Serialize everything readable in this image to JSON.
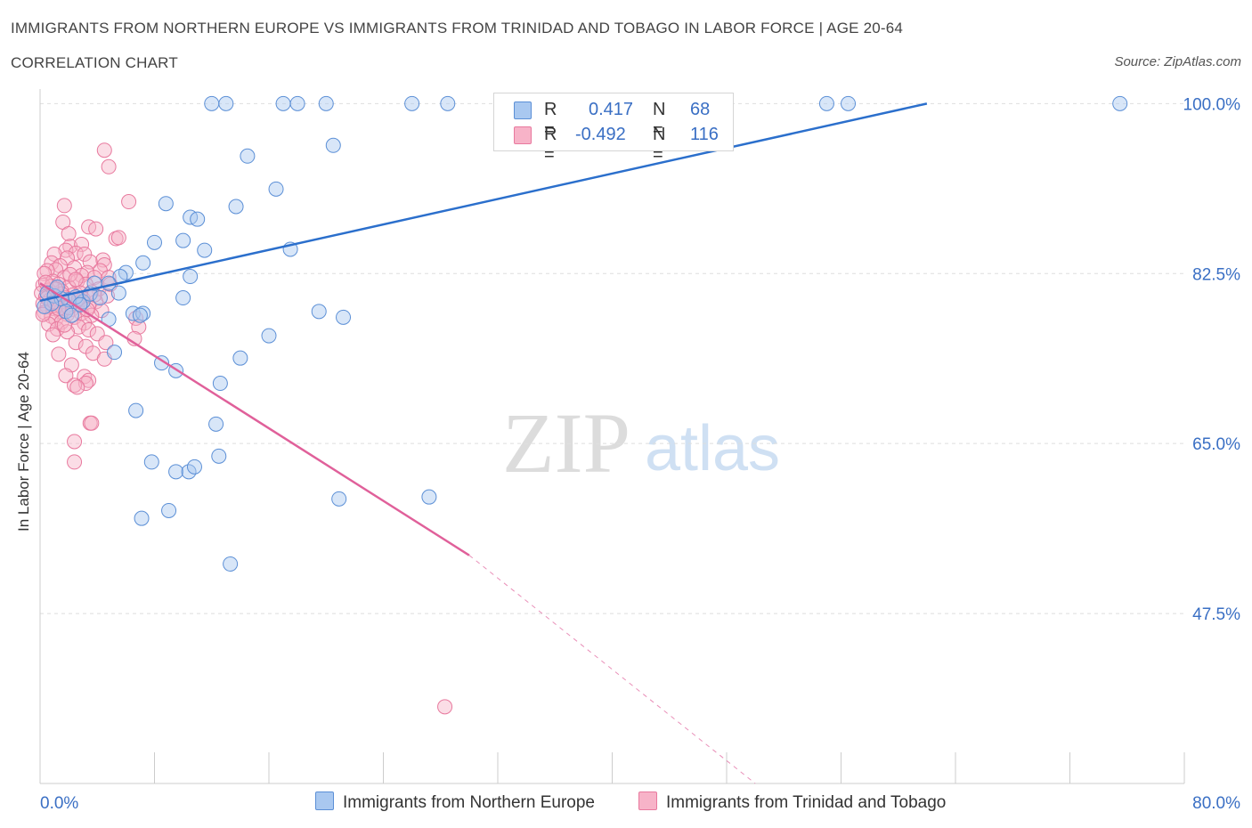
{
  "header": {
    "title": "IMMIGRANTS FROM NORTHERN EUROPE VS IMMIGRANTS FROM TRINIDAD AND TOBAGO IN LABOR FORCE | AGE 20-64",
    "subtitle": "CORRELATION CHART",
    "source": "Source: ZipAtlas.com"
  },
  "watermark": {
    "zip": "ZIP",
    "atlas": "atlas"
  },
  "legend": {
    "rows": [
      {
        "r_label": "R =",
        "r_value": "0.417",
        "n_label": "N =",
        "n_value": "68"
      },
      {
        "r_label": "R =",
        "r_value": "-0.492",
        "n_label": "N =",
        "n_value": "116"
      }
    ]
  },
  "colors": {
    "blue_fill": "#a9c8f0",
    "blue_stroke": "#5b8fd6",
    "blue_line": "#2b6fcc",
    "pink_fill": "#f7b3c8",
    "pink_stroke": "#e8799e",
    "pink_line": "#e0609a",
    "tick_label": "#3a6fc4",
    "grid": "#dedede"
  },
  "chart_data": {
    "type": "scatter",
    "title": "IMMIGRANTS FROM NORTHERN EUROPE VS IMMIGRANTS FROM TRINIDAD AND TOBAGO IN LABOR FORCE | AGE 20-64",
    "ylabel": "In Labor Force | Age 20-64",
    "xlabel": "",
    "xlim": [
      0,
      80
    ],
    "ylim": [
      30,
      101.5
    ],
    "x_tick_labels": [
      "0.0%",
      "80.0%"
    ],
    "y_ticks": [
      100,
      82.5,
      65,
      47.5
    ],
    "y_tick_labels": [
      "100.0%",
      "82.5%",
      "65.0%",
      "47.5%"
    ],
    "grid": "horizontal dashed",
    "legend_position": "top-center",
    "series": [
      {
        "name": "Immigrants from Northern Europe",
        "color": "#a9c8f0",
        "R": 0.417,
        "N": 68,
        "trend": {
          "x": [
            0,
            62
          ],
          "y": [
            79.7,
            100
          ]
        },
        "points": [
          [
            12,
            100
          ],
          [
            13,
            100
          ],
          [
            17,
            100
          ],
          [
            18,
            100
          ],
          [
            20,
            100
          ],
          [
            26,
            100
          ],
          [
            28.5,
            100
          ],
          [
            33,
            100
          ],
          [
            55,
            100
          ],
          [
            56.5,
            100
          ],
          [
            75.5,
            100
          ],
          [
            20.5,
            95.7
          ],
          [
            14.5,
            94.6
          ],
          [
            16.5,
            91.2
          ],
          [
            8.8,
            89.7
          ],
          [
            13.7,
            89.4
          ],
          [
            10.5,
            88.3
          ],
          [
            11,
            88.1
          ],
          [
            8,
            85.7
          ],
          [
            10,
            85.9
          ],
          [
            11.5,
            84.9
          ],
          [
            17.5,
            85
          ],
          [
            7.2,
            83.6
          ],
          [
            6,
            82.6
          ],
          [
            5.6,
            82.2
          ],
          [
            10.5,
            82.2
          ],
          [
            4.8,
            81.5
          ],
          [
            5.5,
            80.5
          ],
          [
            10,
            80
          ],
          [
            2,
            79.8
          ],
          [
            3,
            79.6
          ],
          [
            19.5,
            78.6
          ],
          [
            6.5,
            78.4
          ],
          [
            7.2,
            78.4
          ],
          [
            7,
            78.2
          ],
          [
            21.2,
            78
          ],
          [
            4.8,
            77.8
          ],
          [
            16,
            76.1
          ],
          [
            5.2,
            74.4
          ],
          [
            14,
            73.8
          ],
          [
            8.5,
            73.3
          ],
          [
            9.5,
            72.5
          ],
          [
            12.6,
            71.2
          ],
          [
            6.7,
            68.4
          ],
          [
            12.3,
            67
          ],
          [
            12.5,
            63.7
          ],
          [
            7.8,
            63.1
          ],
          [
            9.5,
            62.1
          ],
          [
            10.4,
            62.1
          ],
          [
            10.8,
            62.6
          ],
          [
            20.9,
            59.3
          ],
          [
            27.2,
            59.5
          ],
          [
            9,
            58.1
          ],
          [
            7.1,
            57.3
          ],
          [
            13.3,
            52.6
          ],
          [
            0.5,
            80.5
          ],
          [
            1,
            80.2
          ],
          [
            1.5,
            79.9
          ],
          [
            0.8,
            79.4
          ],
          [
            2.5,
            80.1
          ],
          [
            3.5,
            80.4
          ],
          [
            1.2,
            81.1
          ],
          [
            2.8,
            79.3
          ],
          [
            4.2,
            80
          ],
          [
            1.8,
            78.6
          ],
          [
            0.3,
            79.1
          ],
          [
            3.8,
            81.5
          ],
          [
            2.2,
            78.2
          ]
        ]
      },
      {
        "name": "Immigrants from Trinidad and Tobago",
        "color": "#f7b3c8",
        "R": -0.492,
        "N": 116,
        "trend": {
          "x": [
            0,
            30
          ],
          "y": [
            81.5,
            53.5
          ]
        },
        "trend_dashed": {
          "x": [
            30,
            50
          ],
          "y": [
            53.5,
            30
          ]
        },
        "points": [
          [
            4.5,
            95.2
          ],
          [
            4.8,
            93.5
          ],
          [
            6.2,
            89.9
          ],
          [
            1.7,
            89.5
          ],
          [
            1.6,
            87.8
          ],
          [
            3.4,
            87.3
          ],
          [
            3.9,
            87.1
          ],
          [
            2,
            86.6
          ],
          [
            5.3,
            86.1
          ],
          [
            5.5,
            86.2
          ],
          [
            2.1,
            85.3
          ],
          [
            2.9,
            85.5
          ],
          [
            1.8,
            84.9
          ],
          [
            2.5,
            84.6
          ],
          [
            1,
            84.5
          ],
          [
            3.1,
            84.5
          ],
          [
            1.9,
            84.1
          ],
          [
            4.4,
            83.9
          ],
          [
            0.8,
            83.6
          ],
          [
            3.5,
            83.7
          ],
          [
            1.4,
            83.3
          ],
          [
            2.4,
            83.1
          ],
          [
            4.5,
            83.4
          ],
          [
            1.1,
            82.9
          ],
          [
            3.3,
            82.6
          ],
          [
            0.5,
            82.8
          ],
          [
            2.9,
            82.3
          ],
          [
            4.2,
            82.8
          ],
          [
            0.3,
            82.5
          ],
          [
            1.7,
            82.1
          ],
          [
            3.8,
            82.1
          ],
          [
            4.8,
            82.1
          ],
          [
            0.9,
            81.7
          ],
          [
            2.6,
            81.7
          ],
          [
            1.3,
            81.4
          ],
          [
            3.2,
            81.4
          ],
          [
            0.2,
            81.3
          ],
          [
            2,
            81.1
          ],
          [
            4.1,
            80.9
          ],
          [
            0.6,
            80.8
          ],
          [
            1.5,
            80.7
          ],
          [
            2.8,
            80.5
          ],
          [
            3.6,
            80.6
          ],
          [
            0.1,
            80.5
          ],
          [
            1,
            80.4
          ],
          [
            2.3,
            80.3
          ],
          [
            4.7,
            80.2
          ],
          [
            0.4,
            80.1
          ],
          [
            1.8,
            80
          ],
          [
            3,
            79.9
          ],
          [
            0.7,
            79.8
          ],
          [
            2.1,
            79.7
          ],
          [
            3.9,
            79.6
          ],
          [
            1.2,
            79.5
          ],
          [
            0.2,
            79.4
          ],
          [
            2.6,
            79.3
          ],
          [
            1.6,
            79.2
          ],
          [
            0.5,
            79.1
          ],
          [
            3.4,
            79.1
          ],
          [
            0.9,
            78.9
          ],
          [
            2.2,
            78.8
          ],
          [
            4.3,
            78.7
          ],
          [
            1.4,
            78.6
          ],
          [
            0.3,
            78.5
          ],
          [
            2.9,
            78.4
          ],
          [
            1.9,
            78.3
          ],
          [
            3.6,
            78.2
          ],
          [
            0.8,
            78.1
          ],
          [
            2.4,
            78
          ],
          [
            1.1,
            77.8
          ],
          [
            6.7,
            77.9
          ],
          [
            1.5,
            77.5
          ],
          [
            3.1,
            77.4
          ],
          [
            0.6,
            77.3
          ],
          [
            2.7,
            77
          ],
          [
            6.9,
            77
          ],
          [
            1.2,
            76.8
          ],
          [
            3.4,
            76.7
          ],
          [
            1.9,
            76.5
          ],
          [
            4,
            76.3
          ],
          [
            0.9,
            76.2
          ],
          [
            6.6,
            75.8
          ],
          [
            2.5,
            75.4
          ],
          [
            4.6,
            75.4
          ],
          [
            3.2,
            75
          ],
          [
            1.3,
            74.2
          ],
          [
            3.7,
            74.3
          ],
          [
            4.5,
            73.7
          ],
          [
            2.2,
            73.1
          ],
          [
            1.8,
            72
          ],
          [
            3.1,
            71.9
          ],
          [
            3.4,
            71.5
          ],
          [
            3.2,
            71.2
          ],
          [
            2.4,
            71
          ],
          [
            2.6,
            70.8
          ],
          [
            3.5,
            67.1
          ],
          [
            3.6,
            67.1
          ],
          [
            2.4,
            65.2
          ],
          [
            2.4,
            63.1
          ],
          [
            28.3,
            37.9
          ],
          [
            0.5,
            80
          ],
          [
            1,
            79.6
          ],
          [
            1.5,
            80.4
          ],
          [
            2,
            79
          ],
          [
            0.8,
            81.2
          ],
          [
            2.7,
            79.9
          ],
          [
            1.3,
            78.9
          ],
          [
            3.8,
            80.3
          ],
          [
            0.4,
            81.6
          ],
          [
            2.1,
            82.4
          ],
          [
            1.7,
            77.2
          ],
          [
            3.3,
            78.8
          ],
          [
            0.2,
            78.3
          ],
          [
            4.9,
            81.4
          ],
          [
            1.1,
            80.9
          ],
          [
            2.5,
            81.9
          ]
        ]
      }
    ]
  },
  "bottom_legend": {
    "items": [
      "Immigrants from Northern Europe",
      "Immigrants from Trinidad and Tobago"
    ]
  }
}
